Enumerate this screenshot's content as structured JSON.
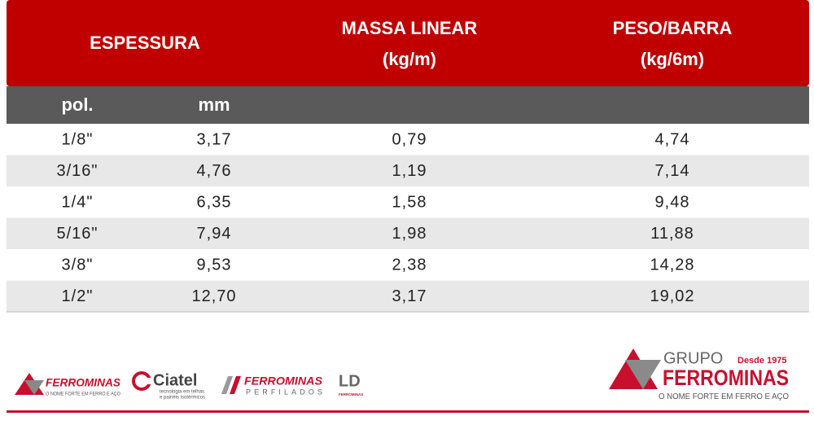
{
  "table": {
    "header": {
      "espessura": "ESPESSURA",
      "massa": [
        "MASSA LINEAR",
        "(kg/m)"
      ],
      "peso": [
        "PESO/BARRA",
        "(kg/6m)"
      ]
    },
    "subheader": [
      "pol.",
      "mm"
    ],
    "rows": [
      [
        "1/8\"",
        "3,17",
        "0,79",
        "4,74"
      ],
      [
        "3/16\"",
        "4,76",
        "1,19",
        "7,14"
      ],
      [
        "1/4\"",
        "6,35",
        "1,58",
        "9,48"
      ],
      [
        "5/16\"",
        "7,94",
        "1,98",
        "11,88"
      ],
      [
        "3/8\"",
        "9,53",
        "2,38",
        "14,28"
      ],
      [
        "1/2\"",
        "12,70",
        "3,17",
        "19,02"
      ]
    ]
  },
  "footer": {
    "logos": [
      {
        "name": "FERROMINAS",
        "tagline": "O NOME FORTE EM FERRO E AÇO"
      },
      {
        "name": "Ciatel",
        "tagline": [
          "tecnologia em telhas",
          "e painéis isotérmicos"
        ]
      },
      {
        "name": "FERROMINAS",
        "tagline": "PERFILADOS"
      },
      {
        "name": "LD",
        "tagline": "FERROMINAS"
      }
    ],
    "group": {
      "prefix": "GRUPO",
      "since": "Desde 1975",
      "name": "FERROMINAS",
      "tagline": "O NOME FORTE EM FERRO E AÇO"
    }
  }
}
